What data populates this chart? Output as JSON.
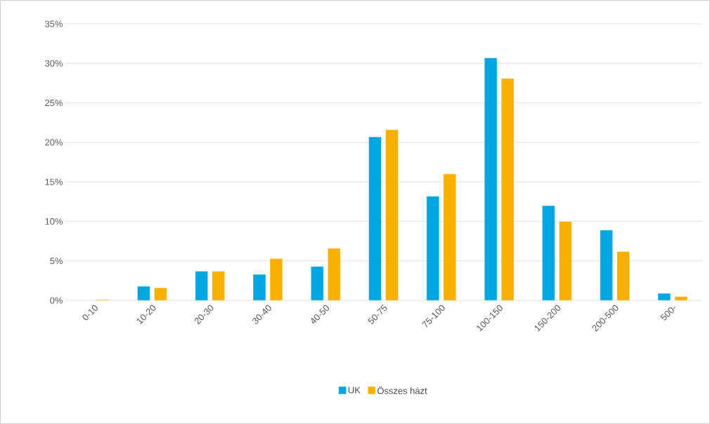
{
  "chart_data": {
    "type": "bar",
    "categories": [
      "0-10",
      "10-20",
      "20-30",
      "30-40",
      "40-50",
      "50-75",
      "75-100",
      "100-150",
      "150-200",
      "200-500",
      "500-"
    ],
    "series": [
      {
        "name": "UK",
        "color": "#00a6e0",
        "values": [
          0,
          1.8,
          3.7,
          3.3,
          4.3,
          20.7,
          13.2,
          30.7,
          12.0,
          8.9,
          0.9
        ]
      },
      {
        "name": "Összes házt",
        "color": "#f7b000",
        "values": [
          0.1,
          1.6,
          3.7,
          5.3,
          6.6,
          21.6,
          16.0,
          28.1,
          10.0,
          6.2,
          0.5
        ]
      }
    ],
    "ylim": [
      0,
      35
    ],
    "yticks": [
      {
        "value": 0,
        "label": "0%"
      },
      {
        "value": 5,
        "label": "5%"
      },
      {
        "value": 10,
        "label": "10%"
      },
      {
        "value": 15,
        "label": "15%"
      },
      {
        "value": 20,
        "label": "20%"
      },
      {
        "value": 25,
        "label": "25%"
      },
      {
        "value": 30,
        "label": "30%"
      },
      {
        "value": 35,
        "label": "35%"
      }
    ],
    "grid": "y",
    "legend": "bottom"
  }
}
